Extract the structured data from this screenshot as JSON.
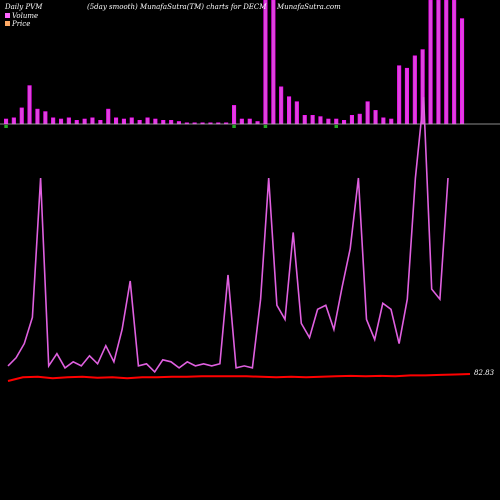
{
  "header": {
    "left": "Daily PVM",
    "middle": "(5day smooth) MunafaSutra(TM) charts for DECM",
    "right": "MunafaSutra.com"
  },
  "legend": {
    "volume": "Volume",
    "price": "Price"
  },
  "colors": {
    "background": "#000000",
    "volume_bar": "#dd44dd",
    "volume_up": "#ff00ff",
    "volume_down_marker": "#22aa22",
    "pvm_line": "#e060e0",
    "price_line": "#ff0000",
    "baseline": "#bbbbbb",
    "legend_volume": "#ff66ff",
    "legend_price": "#ffaa66"
  },
  "chart_data": {
    "type": "bar",
    "ylim": [
      0,
      100
    ],
    "volume": [
      4,
      5,
      13,
      31,
      12,
      10,
      5,
      4,
      5,
      3,
      4,
      5,
      3,
      12,
      5,
      4,
      5,
      3,
      5,
      4,
      3,
      3,
      2,
      1,
      1,
      1,
      1,
      1,
      1,
      15,
      4,
      4,
      2,
      100,
      100,
      30,
      22,
      18,
      7,
      7,
      6,
      4,
      4,
      3,
      7,
      8,
      18,
      11,
      5,
      4,
      47,
      45,
      55,
      60,
      100,
      100,
      100,
      100,
      85
    ],
    "down_markers": [
      0,
      29,
      33,
      42
    ],
    "pvm": [
      7,
      11,
      18,
      31,
      100,
      7,
      13,
      6,
      9,
      7,
      12,
      8,
      17,
      9,
      25,
      49,
      7,
      8,
      4,
      10,
      9,
      6,
      9,
      7,
      8,
      7,
      8,
      52,
      6,
      7,
      6,
      40,
      100,
      37,
      30,
      73,
      28,
      21,
      35,
      37,
      25,
      46,
      65,
      100,
      30,
      20,
      38,
      35,
      18,
      40,
      100,
      140,
      45,
      40,
      100
    ],
    "price": [
      82.0,
      82.8,
      82.9,
      82.6,
      82.8,
      82.9,
      82.7,
      82.8,
      82.6,
      82.8,
      82.8,
      82.9,
      82.9,
      83.0,
      83.0,
      83.0,
      83.0,
      82.9,
      82.8,
      82.9,
      82.8,
      82.9,
      83.0,
      83.1,
      83.0,
      83.1,
      83.0,
      83.2,
      83.2,
      83.3,
      83.4,
      83.5
    ],
    "price_label": "82.83"
  }
}
